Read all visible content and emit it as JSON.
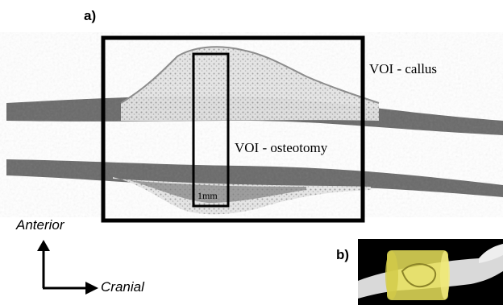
{
  "panels": {
    "a_label": "a)",
    "b_label": "b)"
  },
  "annotations": {
    "voi_callus": "VOI - callus",
    "voi_osteotomy": "VOI - osteotomy",
    "scale_bar": "1mm"
  },
  "orientation": {
    "vertical_axis": "Anterior",
    "horizontal_axis": "Cranial",
    "arrow_icon_up": "arrow-up-icon",
    "arrow_icon_right": "arrow-right-icon"
  },
  "colors": {
    "cortical_bone": "#5f5f5f",
    "trabecular_bone": "#c8c8c8",
    "box_stroke": "#000000",
    "inset_overlay": "#e8e05a"
  }
}
